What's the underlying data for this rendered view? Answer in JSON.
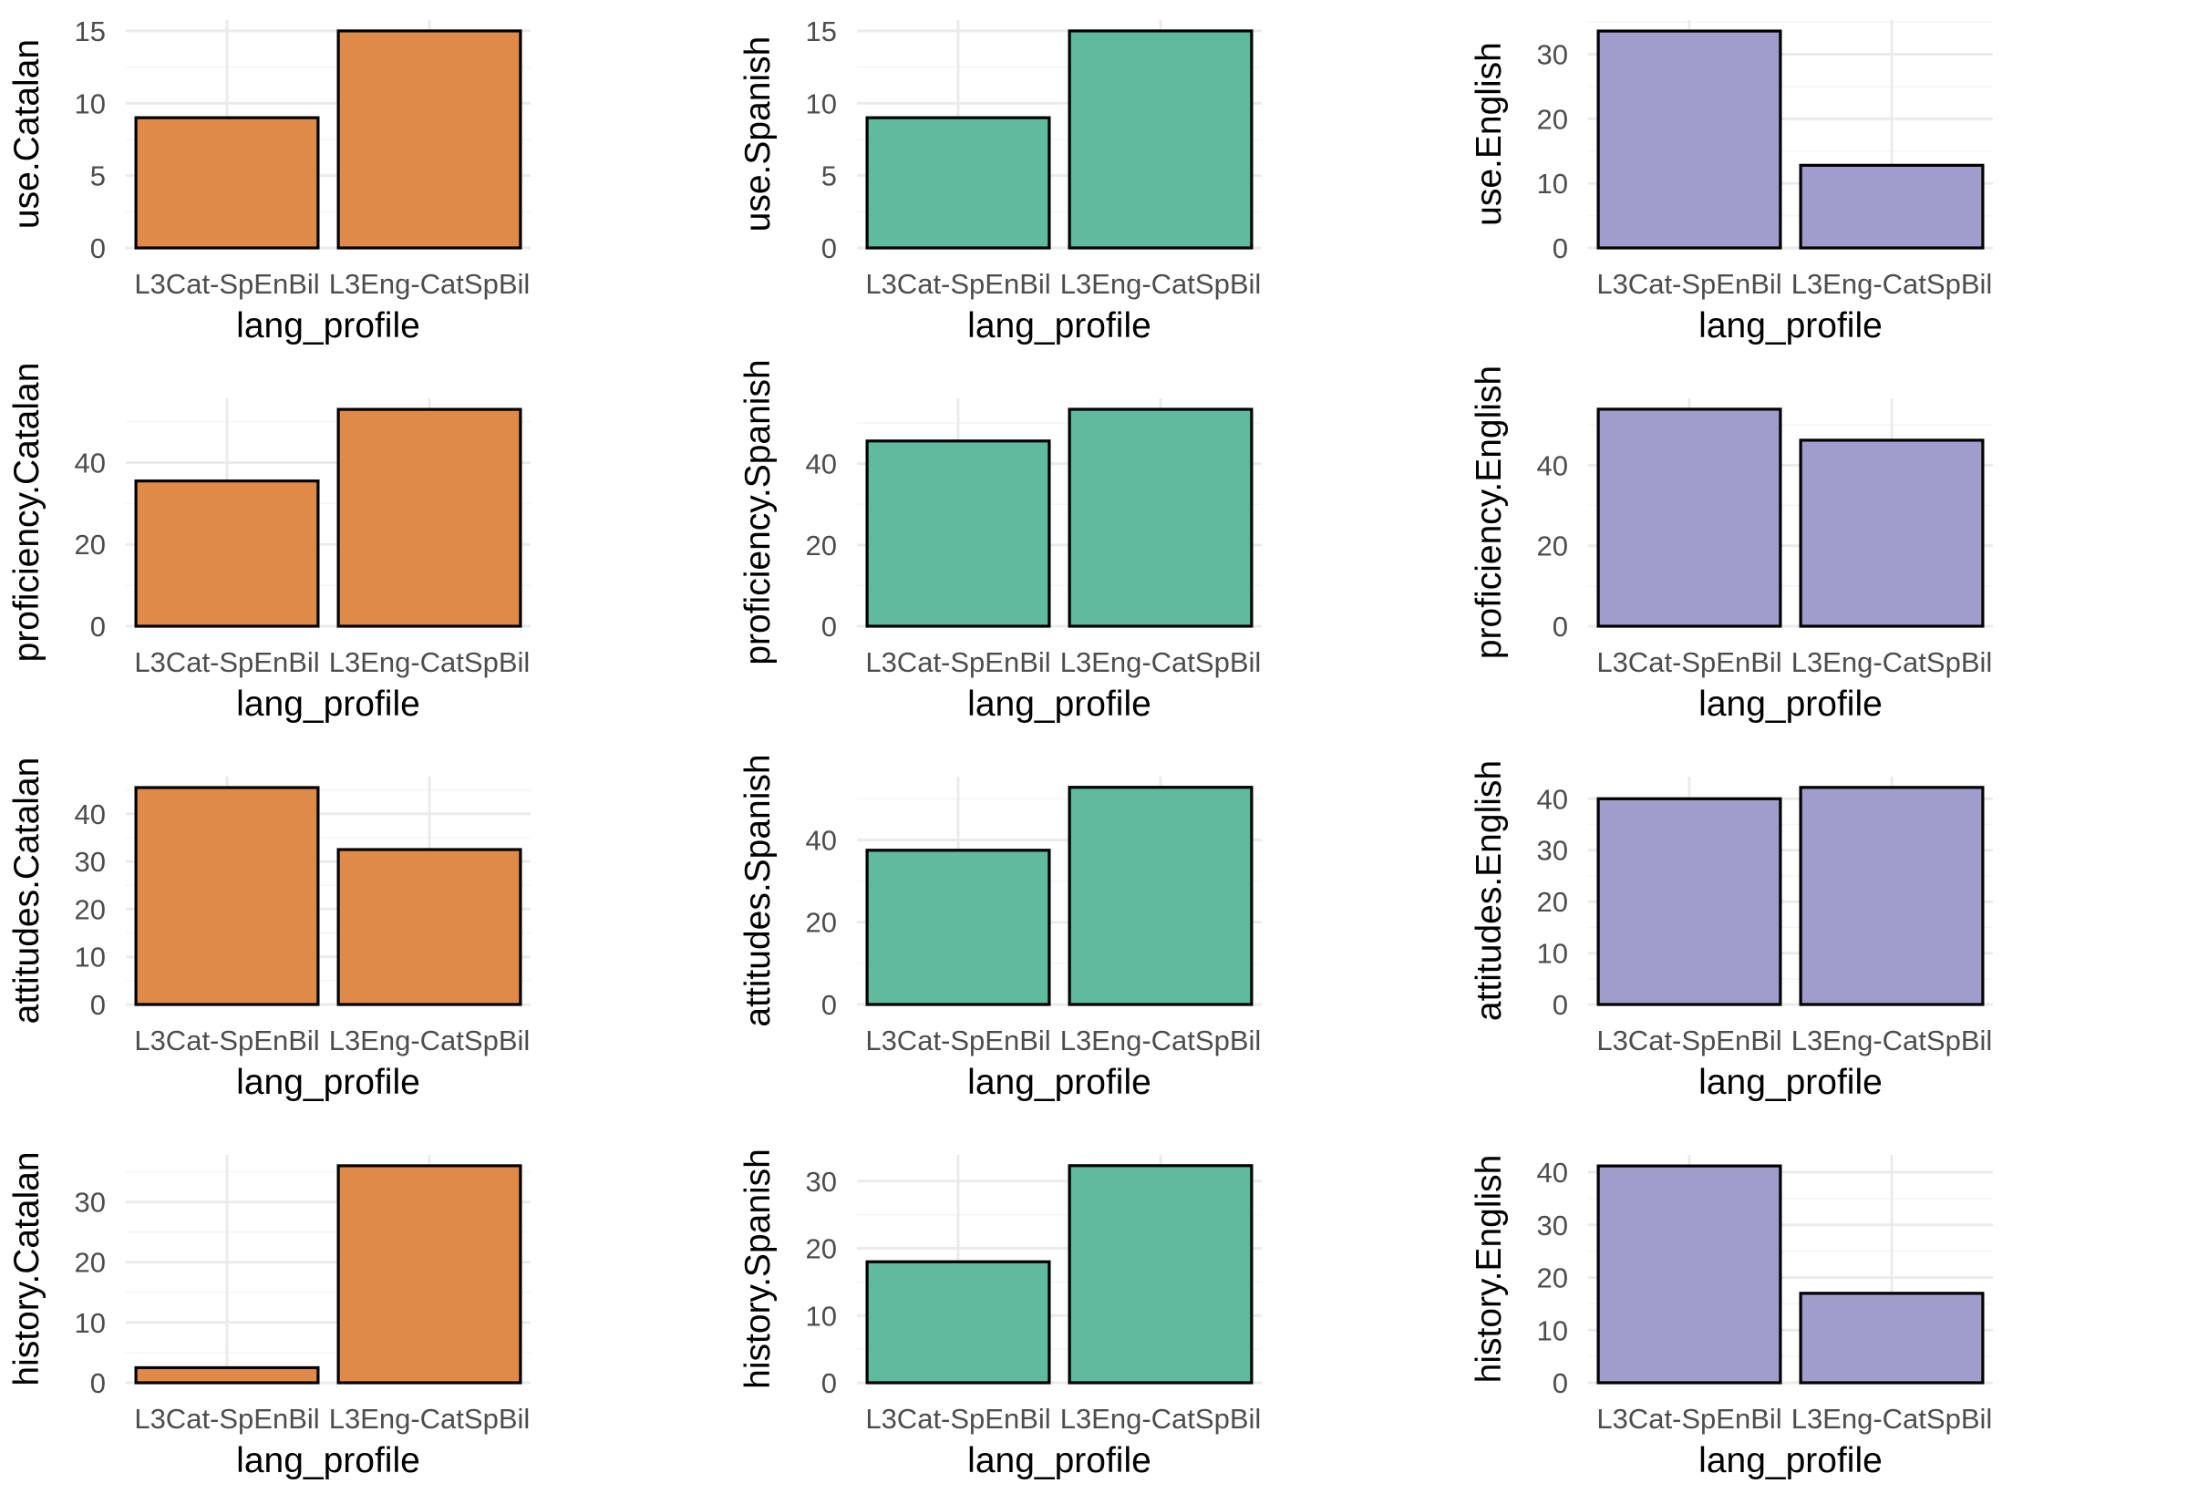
{
  "colors": {
    "Catalan": "#e08a4a",
    "Spanish": "#5fba9e",
    "English": "#a09ccb"
  },
  "chart_data": [
    {
      "type": "bar",
      "ylabel": "use.Catalan",
      "xlabel": "lang_profile",
      "categories": [
        "L3Cat-SpEnBil",
        "L3Eng-CatSpBil"
      ],
      "values": [
        9,
        15
      ],
      "ylim": [
        0,
        15.75
      ],
      "yticks": [
        0,
        5,
        10,
        15
      ],
      "fill": "Catalan"
    },
    {
      "type": "bar",
      "ylabel": "use.Spanish",
      "xlabel": "lang_profile",
      "categories": [
        "L3Cat-SpEnBil",
        "L3Eng-CatSpBil"
      ],
      "values": [
        9,
        15
      ],
      "ylim": [
        0,
        15.75
      ],
      "yticks": [
        0,
        5,
        10,
        15
      ],
      "fill": "Spanish"
    },
    {
      "type": "bar",
      "ylabel": "use.English",
      "xlabel": "lang_profile",
      "categories": [
        "L3Cat-SpEnBil",
        "L3Eng-CatSpBil"
      ],
      "values": [
        33.6,
        12.8
      ],
      "ylim": [
        0,
        35.3
      ],
      "yticks": [
        0,
        10,
        20,
        30
      ],
      "fill": "English"
    },
    {
      "type": "bar",
      "ylabel": "proficiency.Catalan",
      "xlabel": "lang_profile",
      "categories": [
        "L3Cat-SpEnBil",
        "L3Eng-CatSpBil"
      ],
      "values": [
        35.5,
        53
      ],
      "ylim": [
        0,
        55.7
      ],
      "yticks": [
        0,
        20,
        40
      ],
      "fill": "Catalan"
    },
    {
      "type": "bar",
      "ylabel": "proficiency.Spanish",
      "xlabel": "lang_profile",
      "categories": [
        "L3Cat-SpEnBil",
        "L3Eng-CatSpBil"
      ],
      "values": [
        45.6,
        53.4
      ],
      "ylim": [
        0,
        56.1
      ],
      "yticks": [
        0,
        20,
        40
      ],
      "fill": "Spanish"
    },
    {
      "type": "bar",
      "ylabel": "proficiency.English",
      "xlabel": "lang_profile",
      "categories": [
        "L3Cat-SpEnBil",
        "L3Eng-CatSpBil"
      ],
      "values": [
        53.9,
        46.2
      ],
      "ylim": [
        0,
        56.6
      ],
      "yticks": [
        0,
        20,
        40
      ],
      "fill": "English"
    },
    {
      "type": "bar",
      "ylabel": "attitudes.Catalan",
      "xlabel": "lang_profile",
      "categories": [
        "L3Cat-SpEnBil",
        "L3Eng-CatSpBil"
      ],
      "values": [
        45.5,
        32.5
      ],
      "ylim": [
        0,
        47.8
      ],
      "yticks": [
        0,
        10,
        20,
        30,
        40
      ],
      "fill": "Catalan"
    },
    {
      "type": "bar",
      "ylabel": "attitudes.Spanish",
      "xlabel": "lang_profile",
      "categories": [
        "L3Cat-SpEnBil",
        "L3Eng-CatSpBil"
      ],
      "values": [
        37.5,
        52.8
      ],
      "ylim": [
        0,
        55.4
      ],
      "yticks": [
        0,
        20,
        40
      ],
      "fill": "Spanish"
    },
    {
      "type": "bar",
      "ylabel": "attitudes.English",
      "xlabel": "lang_profile",
      "categories": [
        "L3Cat-SpEnBil",
        "L3Eng-CatSpBil"
      ],
      "values": [
        40,
        42.2
      ],
      "ylim": [
        0,
        44.3
      ],
      "yticks": [
        0,
        10,
        20,
        30,
        40
      ],
      "fill": "English"
    },
    {
      "type": "bar",
      "ylabel": "history.Catalan",
      "xlabel": "lang_profile",
      "categories": [
        "L3Cat-SpEnBil",
        "L3Eng-CatSpBil"
      ],
      "values": [
        2.5,
        36
      ],
      "ylim": [
        0,
        37.8
      ],
      "yticks": [
        0,
        10,
        20,
        30
      ],
      "fill": "Catalan"
    },
    {
      "type": "bar",
      "ylabel": "history.Spanish",
      "xlabel": "lang_profile",
      "categories": [
        "L3Cat-SpEnBil",
        "L3Eng-CatSpBil"
      ],
      "values": [
        18,
        32.3
      ],
      "ylim": [
        0,
        33.9
      ],
      "yticks": [
        0,
        10,
        20,
        30
      ],
      "fill": "Spanish"
    },
    {
      "type": "bar",
      "ylabel": "history.English",
      "xlabel": "lang_profile",
      "categories": [
        "L3Cat-SpEnBil",
        "L3Eng-CatSpBil"
      ],
      "values": [
        41.2,
        17
      ],
      "ylim": [
        0,
        43.3
      ],
      "yticks": [
        0,
        10,
        20,
        30,
        40
      ],
      "fill": "English"
    }
  ]
}
